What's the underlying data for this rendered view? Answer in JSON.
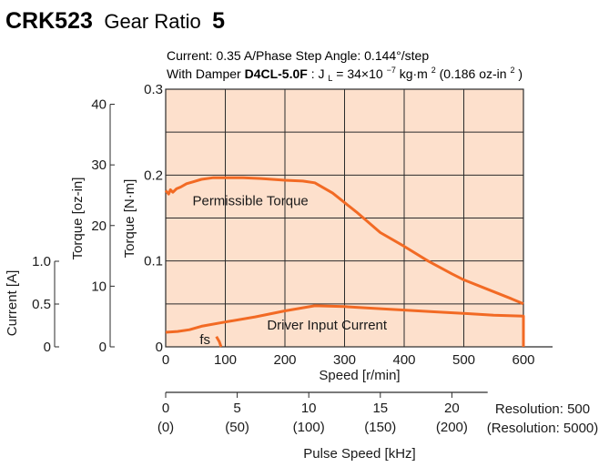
{
  "header": {
    "model": "CRK523",
    "ratio_label": "Gear Ratio",
    "ratio_value": "5"
  },
  "conditions": {
    "line1": "Current: 0.35 A/Phase  Step Angle: 0.144°/step",
    "line2_prefix": "With Damper ",
    "damper": "D4CL-5.0F",
    "line2_mid": ": J",
    "j_sub": "L",
    "line2_eq": " = 34×10",
    "exp1": "−7",
    "line2_unit": " kg·m",
    "exp2": "2",
    "line2_oz": " (0.186 oz-in",
    "exp3": "2",
    "line2_close": ")"
  },
  "axes": {
    "x_label": "Speed [r/min]",
    "y_nm_label": "Torque [N·m]",
    "y_ozin_label": "Torque [oz-in]",
    "current_label": "Current [A]",
    "pulse_label": "Pulse Speed [kHz]",
    "resolution_500": "Resolution: 500",
    "resolution_5000": "(Resolution: 5000)"
  },
  "colors": {
    "plot_bg": "#fde0cc",
    "curve": "#f26a24",
    "grid": "#2b2b2b"
  },
  "chart_data": {
    "type": "line",
    "xlim": [
      0,
      600
    ],
    "x_ticks": [
      0,
      100,
      200,
      300,
      400,
      500,
      600
    ],
    "x_tick_labels": [
      "0",
      "100",
      "200",
      "300",
      "400",
      "500",
      "600"
    ],
    "y_nm_lim": [
      0,
      0.3
    ],
    "y_nm_ticks": [
      0,
      0.1,
      0.2,
      0.3
    ],
    "y_nm_tick_labels": [
      "0",
      "0.1",
      "0.2",
      "0.3"
    ],
    "y_ozin_lim": [
      0,
      42.48
    ],
    "y_ozin_ticks": [
      0,
      10,
      20,
      30,
      40
    ],
    "y_ozin_tick_labels": [
      "0",
      "10",
      "20",
      "30",
      "40"
    ],
    "current_lim": [
      0,
      1.0
    ],
    "current_ticks": [
      0,
      0.5,
      1.0
    ],
    "current_tick_labels": [
      "0",
      "0.5",
      "1.0"
    ],
    "pulse_ticks": [
      0,
      5,
      10,
      15,
      20
    ],
    "pulse_tick_labels": [
      "0",
      "5",
      "10",
      "15",
      "20"
    ],
    "pulse_tick_labels_hi": [
      "(0)",
      "(50)",
      "(100)",
      "(150)",
      "(200)"
    ],
    "pulse_speed_per_khz": 24,
    "grid": true,
    "series": [
      {
        "name": "Permissible Torque",
        "x": [
          0,
          5,
          8,
          12,
          18,
          25,
          35,
          45,
          60,
          80,
          100,
          130,
          160,
          200,
          230,
          250,
          280,
          320,
          360,
          400,
          440,
          480,
          500,
          540,
          580,
          600
        ],
        "y": [
          0.182,
          0.178,
          0.183,
          0.18,
          0.184,
          0.186,
          0.19,
          0.192,
          0.195,
          0.197,
          0.197,
          0.197,
          0.196,
          0.194,
          0.193,
          0.191,
          0.179,
          0.157,
          0.133,
          0.117,
          0.1,
          0.085,
          0.078,
          0.067,
          0.056,
          0.05
        ]
      },
      {
        "name": "Driver Input Current",
        "x": [
          0,
          20,
          40,
          60,
          100,
          150,
          200,
          250,
          300,
          350,
          400,
          450,
          500,
          550,
          600,
          600
        ],
        "y": [
          0.17,
          0.18,
          0.2,
          0.24,
          0.29,
          0.35,
          0.42,
          0.48,
          0.47,
          0.45,
          0.43,
          0.41,
          0.39,
          0.37,
          0.36,
          0.0
        ]
      }
    ],
    "annotations": {
      "permissible": "Permissible Torque",
      "driver": "Driver Input Current",
      "fs": "fs"
    },
    "fs_line": {
      "x": [
        85,
        90,
        93
      ],
      "y": [
        0.012,
        0.006,
        0.0
      ]
    }
  }
}
